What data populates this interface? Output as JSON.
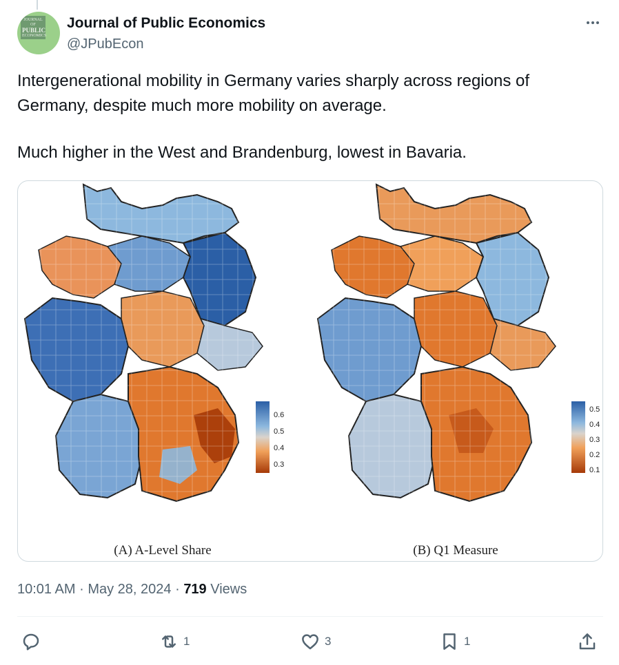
{
  "account": {
    "name": "Journal of Public Economics",
    "handle": "@JPubEcon",
    "avatar_text_top": "JOURNAL OF",
    "avatar_text_main": "PUBLIC",
    "avatar_text_bottom": "ECONOMICS"
  },
  "tweet": {
    "paragraph1": "Intergenerational mobility in Germany varies sharply across regions of Germany, despite much more mobility on average.",
    "paragraph2": "Much higher in the West and Brandenburg, lowest in Bavaria."
  },
  "figure": {
    "panel_a": {
      "caption": "(A) A-Level Share",
      "legend_ticks": [
        "0.6",
        "0.5",
        "0.4",
        "0.3"
      ]
    },
    "panel_b": {
      "caption": "(B) Q1 Measure",
      "legend_ticks": [
        "0.5",
        "0.4",
        "0.3",
        "0.2",
        "0.1"
      ]
    },
    "colors": {
      "high": "#2b5fa6",
      "mid_high": "#8db8de",
      "mid": "#d9d3cc",
      "mid_low": "#f0a05a",
      "low": "#a63a08"
    }
  },
  "meta": {
    "time": "10:01 AM",
    "sep1": "·",
    "date": "May 28, 2024",
    "sep2": "·",
    "views_count": "719",
    "views_label": "Views"
  },
  "actions": {
    "reply_count": "",
    "retweet_count": "1",
    "like_count": "3",
    "bookmark_count": "1"
  },
  "icons": [
    "more-icon",
    "reply-icon",
    "retweet-icon",
    "like-icon",
    "bookmark-icon",
    "share-icon"
  ]
}
